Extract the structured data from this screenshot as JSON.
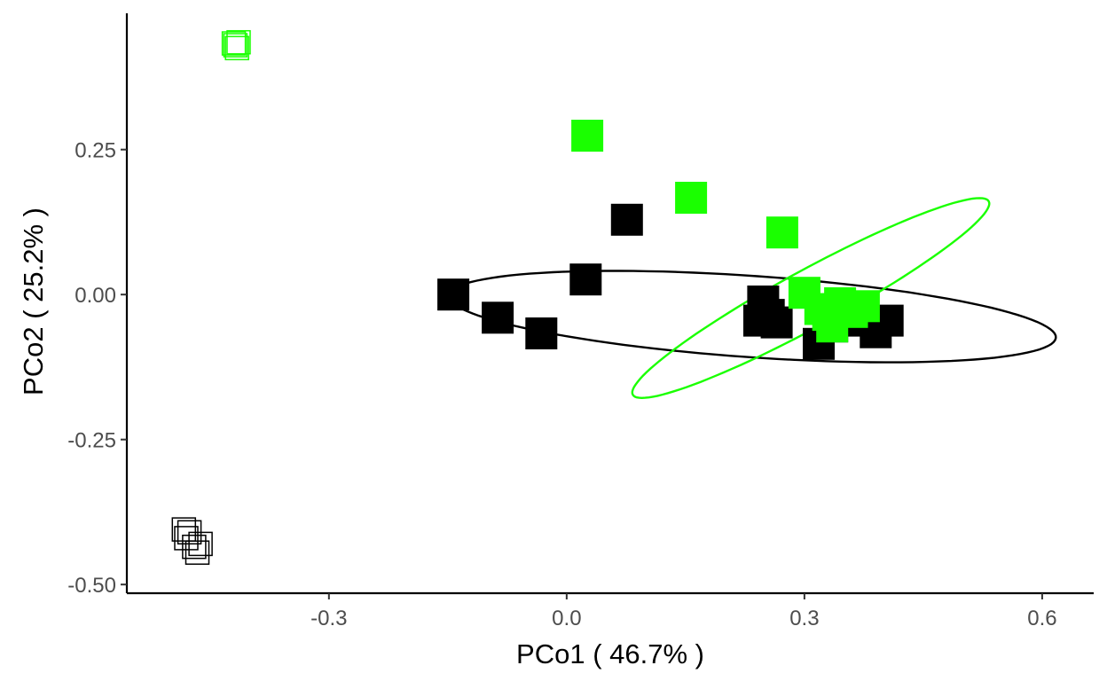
{
  "chart_data": {
    "type": "scatter",
    "xlabel": "PCo1 ( 46.7% )",
    "ylabel": "PCo2 ( 25.2% )",
    "xlim": [
      -0.555,
      0.665
    ],
    "ylim": [
      -0.515,
      0.485
    ],
    "x_ticks": [
      -0.3,
      0.0,
      0.3,
      0.6
    ],
    "x_tick_labels": [
      "-0.3",
      "0.0",
      "0.3",
      "0.6"
    ],
    "y_ticks": [
      -0.5,
      -0.25,
      0.0,
      0.25
    ],
    "y_tick_labels": [
      "-0.50",
      "-0.25",
      "0.00",
      "0.25"
    ],
    "grid": false,
    "legend": "none",
    "series": [
      {
        "color": "#000000",
        "marker": "filled-square",
        "points": [
          [
            -0.143,
            0.0
          ],
          [
            -0.087,
            -0.04
          ],
          [
            -0.032,
            -0.067
          ],
          [
            0.024,
            0.026
          ],
          [
            0.076,
            0.129
          ],
          [
            0.243,
            -0.045
          ],
          [
            0.248,
            -0.012
          ],
          [
            0.255,
            -0.035
          ],
          [
            0.265,
            -0.048
          ],
          [
            0.335,
            -0.055
          ],
          [
            0.318,
            -0.085
          ],
          [
            0.345,
            -0.032
          ],
          [
            0.37,
            -0.045
          ],
          [
            0.39,
            -0.065
          ],
          [
            0.405,
            -0.045
          ]
        ],
        "ellipse": {
          "center": [
            0.234,
            -0.038
          ],
          "semi_major": 0.385,
          "semi_minor": 0.07,
          "rotation_deg": -5.5
        }
      },
      {
        "color": "#1aff00",
        "marker": "filled-square",
        "points": [
          [
            0.026,
            0.274
          ],
          [
            0.157,
            0.167
          ],
          [
            0.272,
            0.107
          ],
          [
            0.3,
            0.003
          ],
          [
            0.33,
            -0.035
          ],
          [
            0.345,
            -0.015
          ],
          [
            0.32,
            -0.025
          ],
          [
            0.36,
            -0.03
          ],
          [
            0.375,
            -0.02
          ],
          [
            0.335,
            -0.055
          ]
        ],
        "ellipse": {
          "center": [
            0.308,
            -0.006
          ],
          "semi_major": 0.28,
          "semi_minor": 0.045,
          "rotation_deg": 37
        }
      },
      {
        "color": "#000000",
        "marker": "open-square",
        "points": [
          [
            -0.483,
            -0.405
          ],
          [
            -0.48,
            -0.42
          ],
          [
            -0.476,
            -0.41
          ],
          [
            -0.47,
            -0.435
          ],
          [
            -0.466,
            -0.445
          ],
          [
            -0.462,
            -0.43
          ]
        ]
      },
      {
        "color": "#1aff00",
        "marker": "open-square",
        "points": [
          [
            -0.42,
            0.433
          ],
          [
            -0.418,
            0.43
          ],
          [
            -0.416,
            0.425
          ],
          [
            -0.414,
            0.435
          ]
        ]
      }
    ]
  }
}
